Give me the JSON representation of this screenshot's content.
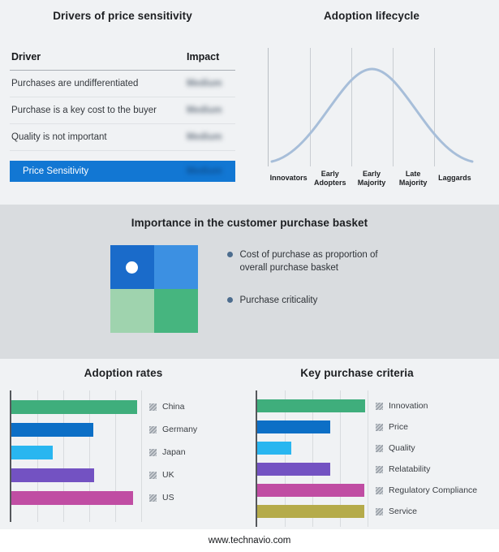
{
  "page": {
    "footer_url": "www.technavio.com"
  },
  "colors": {
    "page_bg": "#f0f2f4",
    "band_bg": "#d9dcdf",
    "highlight_blue": "#1277d3",
    "curve": "#a7bed9",
    "legend_bullet": "#4d6d8e"
  },
  "drivers": {
    "title": "Drivers of price sensitivity",
    "columns": {
      "driver": "Driver",
      "impact": "Impact"
    },
    "rows": [
      {
        "driver": "Purchases are undifferentiated",
        "impact": "Medium"
      },
      {
        "driver": "Purchase is a key cost to the buyer",
        "impact": "Medium"
      },
      {
        "driver": "Quality is not important",
        "impact": "Medium"
      }
    ],
    "summary": {
      "label": "Price Sensitivity",
      "impact": "Medium"
    },
    "impact_values_blurred": true
  },
  "basket": {
    "title": "Importance in the customer purchase basket",
    "quadrant_colors": [
      "#1a6bca",
      "#3c90e2",
      "#9fd3ae",
      "#46b57f"
    ],
    "legend": [
      "Cost of purchase as proportion of overall purchase basket",
      "Purchase criticality"
    ]
  },
  "chart_data": [
    {
      "type": "line",
      "title": "Adoption lifecycle",
      "categories": [
        "Innovators",
        "Early Adopters",
        "Early Majority",
        "Late Majority",
        "Laggards"
      ],
      "shape": "bell-curve",
      "peak_category": "Early Majority",
      "points_norm": [
        [
          0,
          0.02
        ],
        [
          0.2,
          0.25
        ],
        [
          0.4,
          0.88
        ],
        [
          0.5,
          1.0
        ],
        [
          0.6,
          0.88
        ],
        [
          0.8,
          0.25
        ],
        [
          1,
          0.02
        ]
      ],
      "line_color": "#a7bed9",
      "grid": true
    },
    {
      "type": "bar",
      "title": "Adoption rates",
      "orientation": "horizontal",
      "categories": [
        "China",
        "Germany",
        "Japan",
        "UK",
        "US"
      ],
      "values": [
        97,
        63,
        32,
        64,
        94
      ],
      "xlim": [
        0,
        100
      ],
      "colors": [
        "#3fae7c",
        "#0c6fc6",
        "#29b6f0",
        "#7352c2",
        "#c04da3"
      ],
      "grid": true,
      "legend_position": "right"
    },
    {
      "type": "bar",
      "title": "Key purchase criteria",
      "orientation": "horizontal",
      "categories": [
        "Innovation",
        "Price",
        "Quality",
        "Relatability",
        "Regulatory Compliance",
        "Service"
      ],
      "values": [
        98,
        66,
        31,
        66,
        97,
        97
      ],
      "xlim": [
        0,
        100
      ],
      "colors": [
        "#3fae7c",
        "#0c6fc6",
        "#29b6f0",
        "#7352c2",
        "#c04da3",
        "#b5ab4a"
      ],
      "grid": true,
      "legend_position": "right"
    }
  ]
}
